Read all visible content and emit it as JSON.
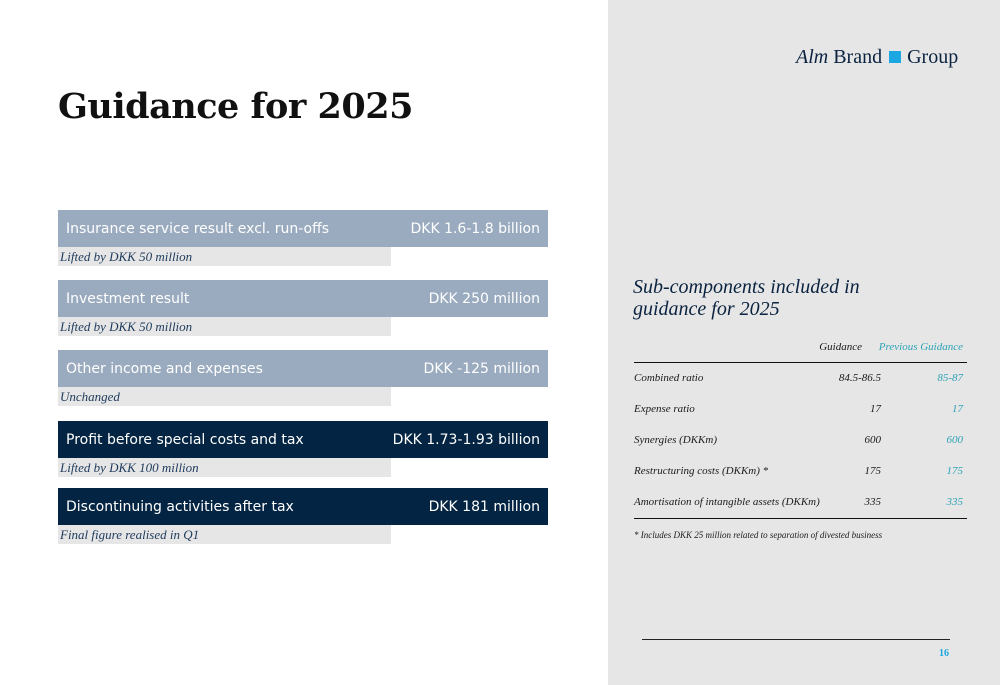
{
  "logo": {
    "part1": "Alm",
    "part2": "Brand",
    "part3": "Group",
    "square_color": "#1aa7e2"
  },
  "title": "Guidance for 2025",
  "guidance_items": [
    {
      "label": "Insurance service result excl. run-offs",
      "value": "DKK 1.6-1.8 billion",
      "note": "Lifted by DKK 50 million",
      "style": "light"
    },
    {
      "label": "Investment result",
      "value": "DKK 250 million",
      "note": "Lifted by DKK 50 million",
      "style": "light"
    },
    {
      "label": "Other income and expenses",
      "value": "DKK -125 million",
      "note": "Unchanged",
      "style": "light"
    },
    {
      "label": "Profit before special costs and tax",
      "value": "DKK 1.73-1.93 billion",
      "note": "Lifted by DKK 100 million",
      "style": "dark"
    },
    {
      "label": "Discontinuing activities after tax",
      "value": "DKK 181 million",
      "note": "Final figure realised in Q1",
      "style": "dark"
    }
  ],
  "subcomponents": {
    "title_line1": "Sub-components included in",
    "title_line2": "guidance for 2025",
    "headers": {
      "guidance": "Guidance",
      "previous": "Previous Guidance"
    },
    "rows": [
      {
        "label": "Combined ratio",
        "guidance": "84.5-86.5",
        "previous": "85-87"
      },
      {
        "label": "Expense ratio",
        "guidance": "17",
        "previous": "17"
      },
      {
        "label": "Synergies (DKKm)",
        "guidance": "600",
        "previous": "600"
      },
      {
        "label": "Restructuring costs (DKKm) *",
        "guidance": "175",
        "previous": "175"
      },
      {
        "label": "Amortisation of intangible assets (DKKm)",
        "guidance": "335",
        "previous": "335"
      }
    ],
    "footnote": "* Includes DKK 25 million related to separation of divested business"
  },
  "page_number": "16",
  "colors": {
    "light_bar": "#9aabbf",
    "dark_bar": "#032442",
    "accent": "#1aa7e2",
    "previous_guidance": "#2fa3b8"
  }
}
